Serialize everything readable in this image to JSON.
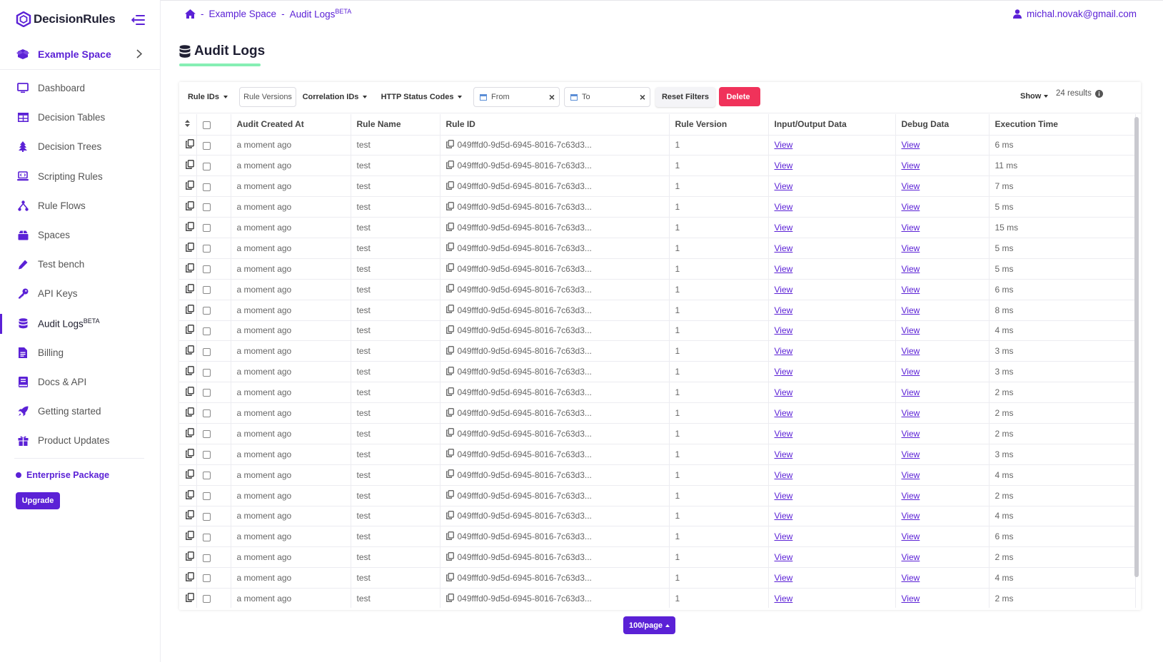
{
  "app": {
    "logo_text": "DecisionRules"
  },
  "space": {
    "name": "Example Space"
  },
  "sidebar": {
    "items": [
      {
        "label": "Dashboard",
        "icon": "monitor-icon"
      },
      {
        "label": "Decision Tables",
        "icon": "table-icon"
      },
      {
        "label": "Decision Trees",
        "icon": "tree-icon"
      },
      {
        "label": "Scripting Rules",
        "icon": "laptop-code-icon"
      },
      {
        "label": "Rule Flows",
        "icon": "flow-icon"
      },
      {
        "label": "Spaces",
        "icon": "box-icon"
      },
      {
        "label": "Test bench",
        "icon": "pen-icon"
      },
      {
        "label": "API Keys",
        "icon": "key-icon"
      },
      {
        "label": "Audit Logs",
        "badge": "BETA",
        "icon": "database-icon",
        "active": true
      },
      {
        "label": "Billing",
        "icon": "file-invoice-icon"
      },
      {
        "label": "Docs & API",
        "icon": "book-icon"
      },
      {
        "label": "Getting started",
        "icon": "rocket-icon"
      },
      {
        "label": "Product Updates",
        "icon": "gift-icon"
      }
    ],
    "package": "Enterprise Package",
    "upgrade_label": "Upgrade"
  },
  "breadcrumb": {
    "space": "Example Space",
    "page": "Audit Logs",
    "badge": "BETA",
    "separator": "-"
  },
  "user": {
    "email": "michal.novak@gmail.com"
  },
  "page": {
    "title": "Audit Logs"
  },
  "toolbar": {
    "rule_ids": "Rule IDs",
    "rule_versions": "Rule Versions",
    "correlation_ids": "Correlation IDs",
    "http_status": "HTTP Status Codes",
    "from_placeholder": "From",
    "to_placeholder": "To",
    "reset": "Reset Filters",
    "delete": "Delete",
    "show": "Show",
    "results": "24 results"
  },
  "table": {
    "columns": [
      "Audit Created At",
      "Rule Name",
      "Rule ID",
      "Rule Version",
      "Input/Output Data",
      "Debug Data",
      "Execution Time"
    ],
    "rows": [
      {
        "created": "a moment ago",
        "name": "test",
        "rule_id": "049fffd0-9d5d-6945-8016-7c63d3...",
        "version": "1",
        "io": "View",
        "debug": "View",
        "time": "6 ms"
      },
      {
        "created": "a moment ago",
        "name": "test",
        "rule_id": "049fffd0-9d5d-6945-8016-7c63d3...",
        "version": "1",
        "io": "View",
        "debug": "View",
        "time": "11 ms"
      },
      {
        "created": "a moment ago",
        "name": "test",
        "rule_id": "049fffd0-9d5d-6945-8016-7c63d3...",
        "version": "1",
        "io": "View",
        "debug": "View",
        "time": "7 ms"
      },
      {
        "created": "a moment ago",
        "name": "test",
        "rule_id": "049fffd0-9d5d-6945-8016-7c63d3...",
        "version": "1",
        "io": "View",
        "debug": "View",
        "time": "5 ms"
      },
      {
        "created": "a moment ago",
        "name": "test",
        "rule_id": "049fffd0-9d5d-6945-8016-7c63d3...",
        "version": "1",
        "io": "View",
        "debug": "View",
        "time": "15 ms"
      },
      {
        "created": "a moment ago",
        "name": "test",
        "rule_id": "049fffd0-9d5d-6945-8016-7c63d3...",
        "version": "1",
        "io": "View",
        "debug": "View",
        "time": "5 ms"
      },
      {
        "created": "a moment ago",
        "name": "test",
        "rule_id": "049fffd0-9d5d-6945-8016-7c63d3...",
        "version": "1",
        "io": "View",
        "debug": "View",
        "time": "5 ms"
      },
      {
        "created": "a moment ago",
        "name": "test",
        "rule_id": "049fffd0-9d5d-6945-8016-7c63d3...",
        "version": "1",
        "io": "View",
        "debug": "View",
        "time": "6 ms"
      },
      {
        "created": "a moment ago",
        "name": "test",
        "rule_id": "049fffd0-9d5d-6945-8016-7c63d3...",
        "version": "1",
        "io": "View",
        "debug": "View",
        "time": "8 ms"
      },
      {
        "created": "a moment ago",
        "name": "test",
        "rule_id": "049fffd0-9d5d-6945-8016-7c63d3...",
        "version": "1",
        "io": "View",
        "debug": "View",
        "time": "4 ms"
      },
      {
        "created": "a moment ago",
        "name": "test",
        "rule_id": "049fffd0-9d5d-6945-8016-7c63d3...",
        "version": "1",
        "io": "View",
        "debug": "View",
        "time": "3 ms"
      },
      {
        "created": "a moment ago",
        "name": "test",
        "rule_id": "049fffd0-9d5d-6945-8016-7c63d3...",
        "version": "1",
        "io": "View",
        "debug": "View",
        "time": "3 ms"
      },
      {
        "created": "a moment ago",
        "name": "test",
        "rule_id": "049fffd0-9d5d-6945-8016-7c63d3...",
        "version": "1",
        "io": "View",
        "debug": "View",
        "time": "2 ms"
      },
      {
        "created": "a moment ago",
        "name": "test",
        "rule_id": "049fffd0-9d5d-6945-8016-7c63d3...",
        "version": "1",
        "io": "View",
        "debug": "View",
        "time": "2 ms"
      },
      {
        "created": "a moment ago",
        "name": "test",
        "rule_id": "049fffd0-9d5d-6945-8016-7c63d3...",
        "version": "1",
        "io": "View",
        "debug": "View",
        "time": "2 ms"
      },
      {
        "created": "a moment ago",
        "name": "test",
        "rule_id": "049fffd0-9d5d-6945-8016-7c63d3...",
        "version": "1",
        "io": "View",
        "debug": "View",
        "time": "3 ms"
      },
      {
        "created": "a moment ago",
        "name": "test",
        "rule_id": "049fffd0-9d5d-6945-8016-7c63d3...",
        "version": "1",
        "io": "View",
        "debug": "View",
        "time": "4 ms"
      },
      {
        "created": "a moment ago",
        "name": "test",
        "rule_id": "049fffd0-9d5d-6945-8016-7c63d3...",
        "version": "1",
        "io": "View",
        "debug": "View",
        "time": "2 ms"
      },
      {
        "created": "a moment ago",
        "name": "test",
        "rule_id": "049fffd0-9d5d-6945-8016-7c63d3...",
        "version": "1",
        "io": "View",
        "debug": "View",
        "time": "4 ms"
      },
      {
        "created": "a moment ago",
        "name": "test",
        "rule_id": "049fffd0-9d5d-6945-8016-7c63d3...",
        "version": "1",
        "io": "View",
        "debug": "View",
        "time": "6 ms"
      },
      {
        "created": "a moment ago",
        "name": "test",
        "rule_id": "049fffd0-9d5d-6945-8016-7c63d3...",
        "version": "1",
        "io": "View",
        "debug": "View",
        "time": "2 ms"
      },
      {
        "created": "a moment ago",
        "name": "test",
        "rule_id": "049fffd0-9d5d-6945-8016-7c63d3...",
        "version": "1",
        "io": "View",
        "debug": "View",
        "time": "4 ms"
      },
      {
        "created": "a moment ago",
        "name": "test",
        "rule_id": "049fffd0-9d5d-6945-8016-7c63d3...",
        "version": "1",
        "io": "View",
        "debug": "View",
        "time": "2 ms"
      }
    ]
  },
  "pagination": {
    "page_size": "100/page"
  },
  "colors": {
    "brand": "#5b21d6",
    "delete": "#f0325a",
    "title_underline": "#86efb4"
  }
}
